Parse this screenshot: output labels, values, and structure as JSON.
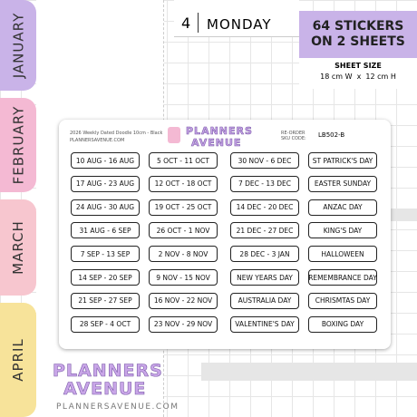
{
  "tabs": [
    "JANUARY",
    "FEBRUARY",
    "MARCH",
    "APRIL"
  ],
  "planner": {
    "day_number": "4",
    "day_name": "MONDAY"
  },
  "info": {
    "title": "64 STICKERS ON 2 SHEETS",
    "size_label": "SHEET SIZE",
    "size_value": "18 cm W  x  12 cm H"
  },
  "sheet": {
    "product": "2026 Weekly Dated Doodle 10cm - Black",
    "website": "PLANNERSAVENUE.COM",
    "logo_top": "PLANNERS",
    "logo_bottom": "AVENUE",
    "reorder": "RE-ORDER SKU CODE:",
    "sku": "LB502-B",
    "columns": [
      [
        "10 AUG - 16 AUG",
        "17 AUG - 23 AUG",
        "24 AUG - 30 AUG",
        "31 AUG - 6 SEP",
        "7 SEP - 13 SEP",
        "14 SEP - 20 SEP",
        "21 SEP - 27 SEP",
        "28 SEP - 4 OCT"
      ],
      [
        "5 OCT - 11 OCT",
        "12 OCT - 18 OCT",
        "19 OCT - 25 OCT",
        "26 OCT - 1 NOV",
        "2 NOV - 8 NOV",
        "9 NOV - 15 NOV",
        "16 NOV - 22 NOV",
        "23 NOV - 29 NOV"
      ],
      [
        "30 NOV - 6 DEC",
        "7 DEC - 13 DEC",
        "14 DEC - 20 DEC",
        "21 DEC - 27 DEC",
        "28 DEC - 3 JAN",
        "NEW YEARS DAY",
        "AUSTRALIA DAY",
        "VALENTINE'S DAY"
      ],
      [
        "ST PATRICK'S DAY",
        "EASTER SUNDAY",
        "ANZAC DAY",
        "KING'S DAY",
        "HALLOWEEN",
        "REMEMBRANCE DAY",
        "CHRISMTAS DAY",
        "BOXING DAY"
      ]
    ]
  },
  "brand": {
    "logo_top": "PLANNERS",
    "logo_bottom": "AVENUE",
    "website": "PLANNERSAVENUE.COM"
  }
}
